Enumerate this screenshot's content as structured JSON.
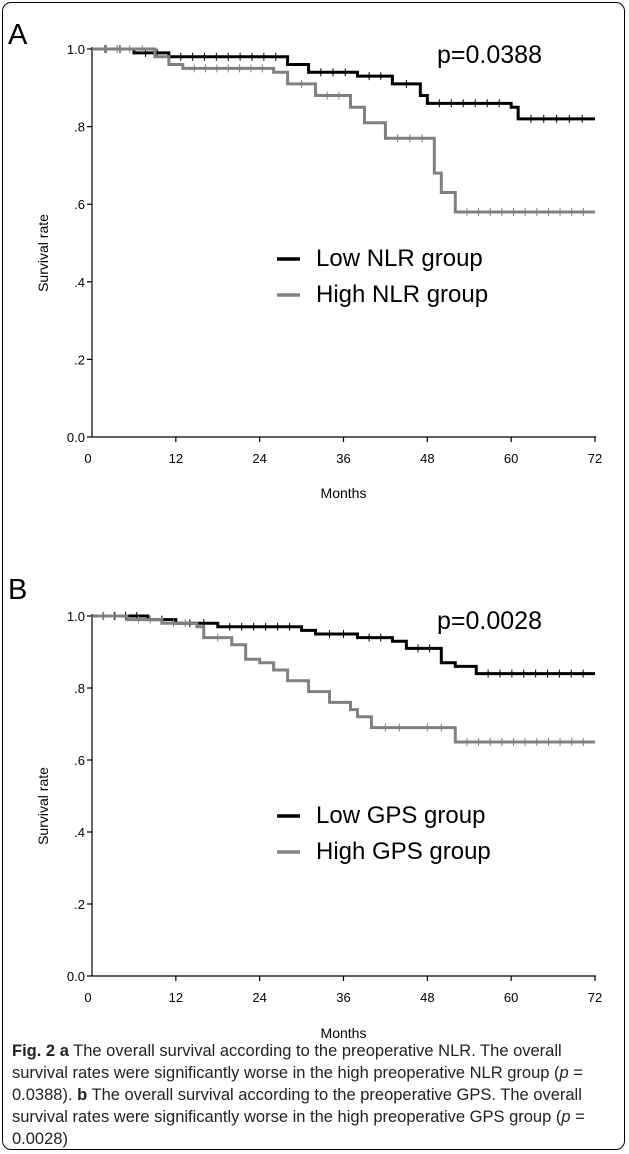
{
  "chart_data": [
    {
      "type": "line",
      "panel_label": "A",
      "xlabel": "Months",
      "ylabel": "Survival rate",
      "xlim": [
        0,
        72
      ],
      "ylim": [
        0,
        1.0
      ],
      "xticks": [
        "0",
        "12",
        "24",
        "36",
        "48",
        "60",
        "72"
      ],
      "yticks": [
        "0.0",
        ".2",
        ".4",
        ".6",
        ".8",
        "1.0"
      ],
      "annotation": "p=0.0388",
      "legend_position": "center-right",
      "series": [
        {
          "name": "Low NLR group",
          "color": "#000000",
          "steps": [
            [
              0,
              1.0
            ],
            [
              6,
              0.99
            ],
            [
              11,
              0.98
            ],
            [
              28,
              0.96
            ],
            [
              31,
              0.94
            ],
            [
              38,
              0.93
            ],
            [
              43,
              0.91
            ],
            [
              47,
              0.88
            ],
            [
              48,
              0.86
            ],
            [
              60,
              0.85
            ],
            [
              61,
              0.82
            ],
            [
              72,
              0.82
            ]
          ]
        },
        {
          "name": "High NLR group",
          "color": "#808080",
          "steps": [
            [
              0,
              1.0
            ],
            [
              9,
              0.98
            ],
            [
              11,
              0.96
            ],
            [
              13,
              0.95
            ],
            [
              26,
              0.94
            ],
            [
              28,
              0.91
            ],
            [
              32,
              0.88
            ],
            [
              37,
              0.85
            ],
            [
              39,
              0.81
            ],
            [
              42,
              0.77
            ],
            [
              49,
              0.68
            ],
            [
              50,
              0.63
            ],
            [
              52,
              0.58
            ],
            [
              72,
              0.58
            ]
          ]
        }
      ]
    },
    {
      "type": "line",
      "panel_label": "B",
      "xlabel": "Months",
      "ylabel": "Survival rate",
      "xlim": [
        0,
        72
      ],
      "ylim": [
        0,
        1.0
      ],
      "xticks": [
        "0",
        "12",
        "24",
        "36",
        "48",
        "60",
        "72"
      ],
      "yticks": [
        "0.0",
        ".2",
        ".4",
        ".6",
        ".8",
        "1.0"
      ],
      "annotation": "p=0.0028",
      "legend_position": "center-right",
      "series": [
        {
          "name": "Low GPS group",
          "color": "#000000",
          "steps": [
            [
              0,
              1.0
            ],
            [
              8,
              0.99
            ],
            [
              12,
              0.98
            ],
            [
              18,
              0.97
            ],
            [
              30,
              0.96
            ],
            [
              32,
              0.95
            ],
            [
              38,
              0.94
            ],
            [
              43,
              0.93
            ],
            [
              45,
              0.91
            ],
            [
              50,
              0.87
            ],
            [
              52,
              0.86
            ],
            [
              55,
              0.84
            ],
            [
              72,
              0.84
            ]
          ]
        },
        {
          "name": "High GPS group",
          "color": "#808080",
          "steps": [
            [
              0,
              1.0
            ],
            [
              5,
              0.99
            ],
            [
              10,
              0.98
            ],
            [
              15,
              0.97
            ],
            [
              16,
              0.94
            ],
            [
              20,
              0.92
            ],
            [
              22,
              0.88
            ],
            [
              24,
              0.87
            ],
            [
              26,
              0.85
            ],
            [
              28,
              0.82
            ],
            [
              31,
              0.79
            ],
            [
              34,
              0.76
            ],
            [
              37,
              0.74
            ],
            [
              38,
              0.72
            ],
            [
              40,
              0.69
            ],
            [
              46,
              0.69
            ],
            [
              52,
              0.65
            ],
            [
              72,
              0.65
            ]
          ]
        }
      ]
    }
  ],
  "caption": {
    "fig_label": "Fig. 2",
    "part_a_label": "a",
    "part_a_text": " The overall survival according to the preoperative NLR. The overall survival rates were significantly worse in the high preoperative NLR group (",
    "p_symbol": "p",
    "part_a_value": " = 0.0388). ",
    "part_b_label": "b",
    "part_b_text": " The overall survival according to the preoperative GPS. The overall survival rates were significantly worse in the high preoperative GPS group (",
    "part_b_value": " = 0.0028)"
  }
}
